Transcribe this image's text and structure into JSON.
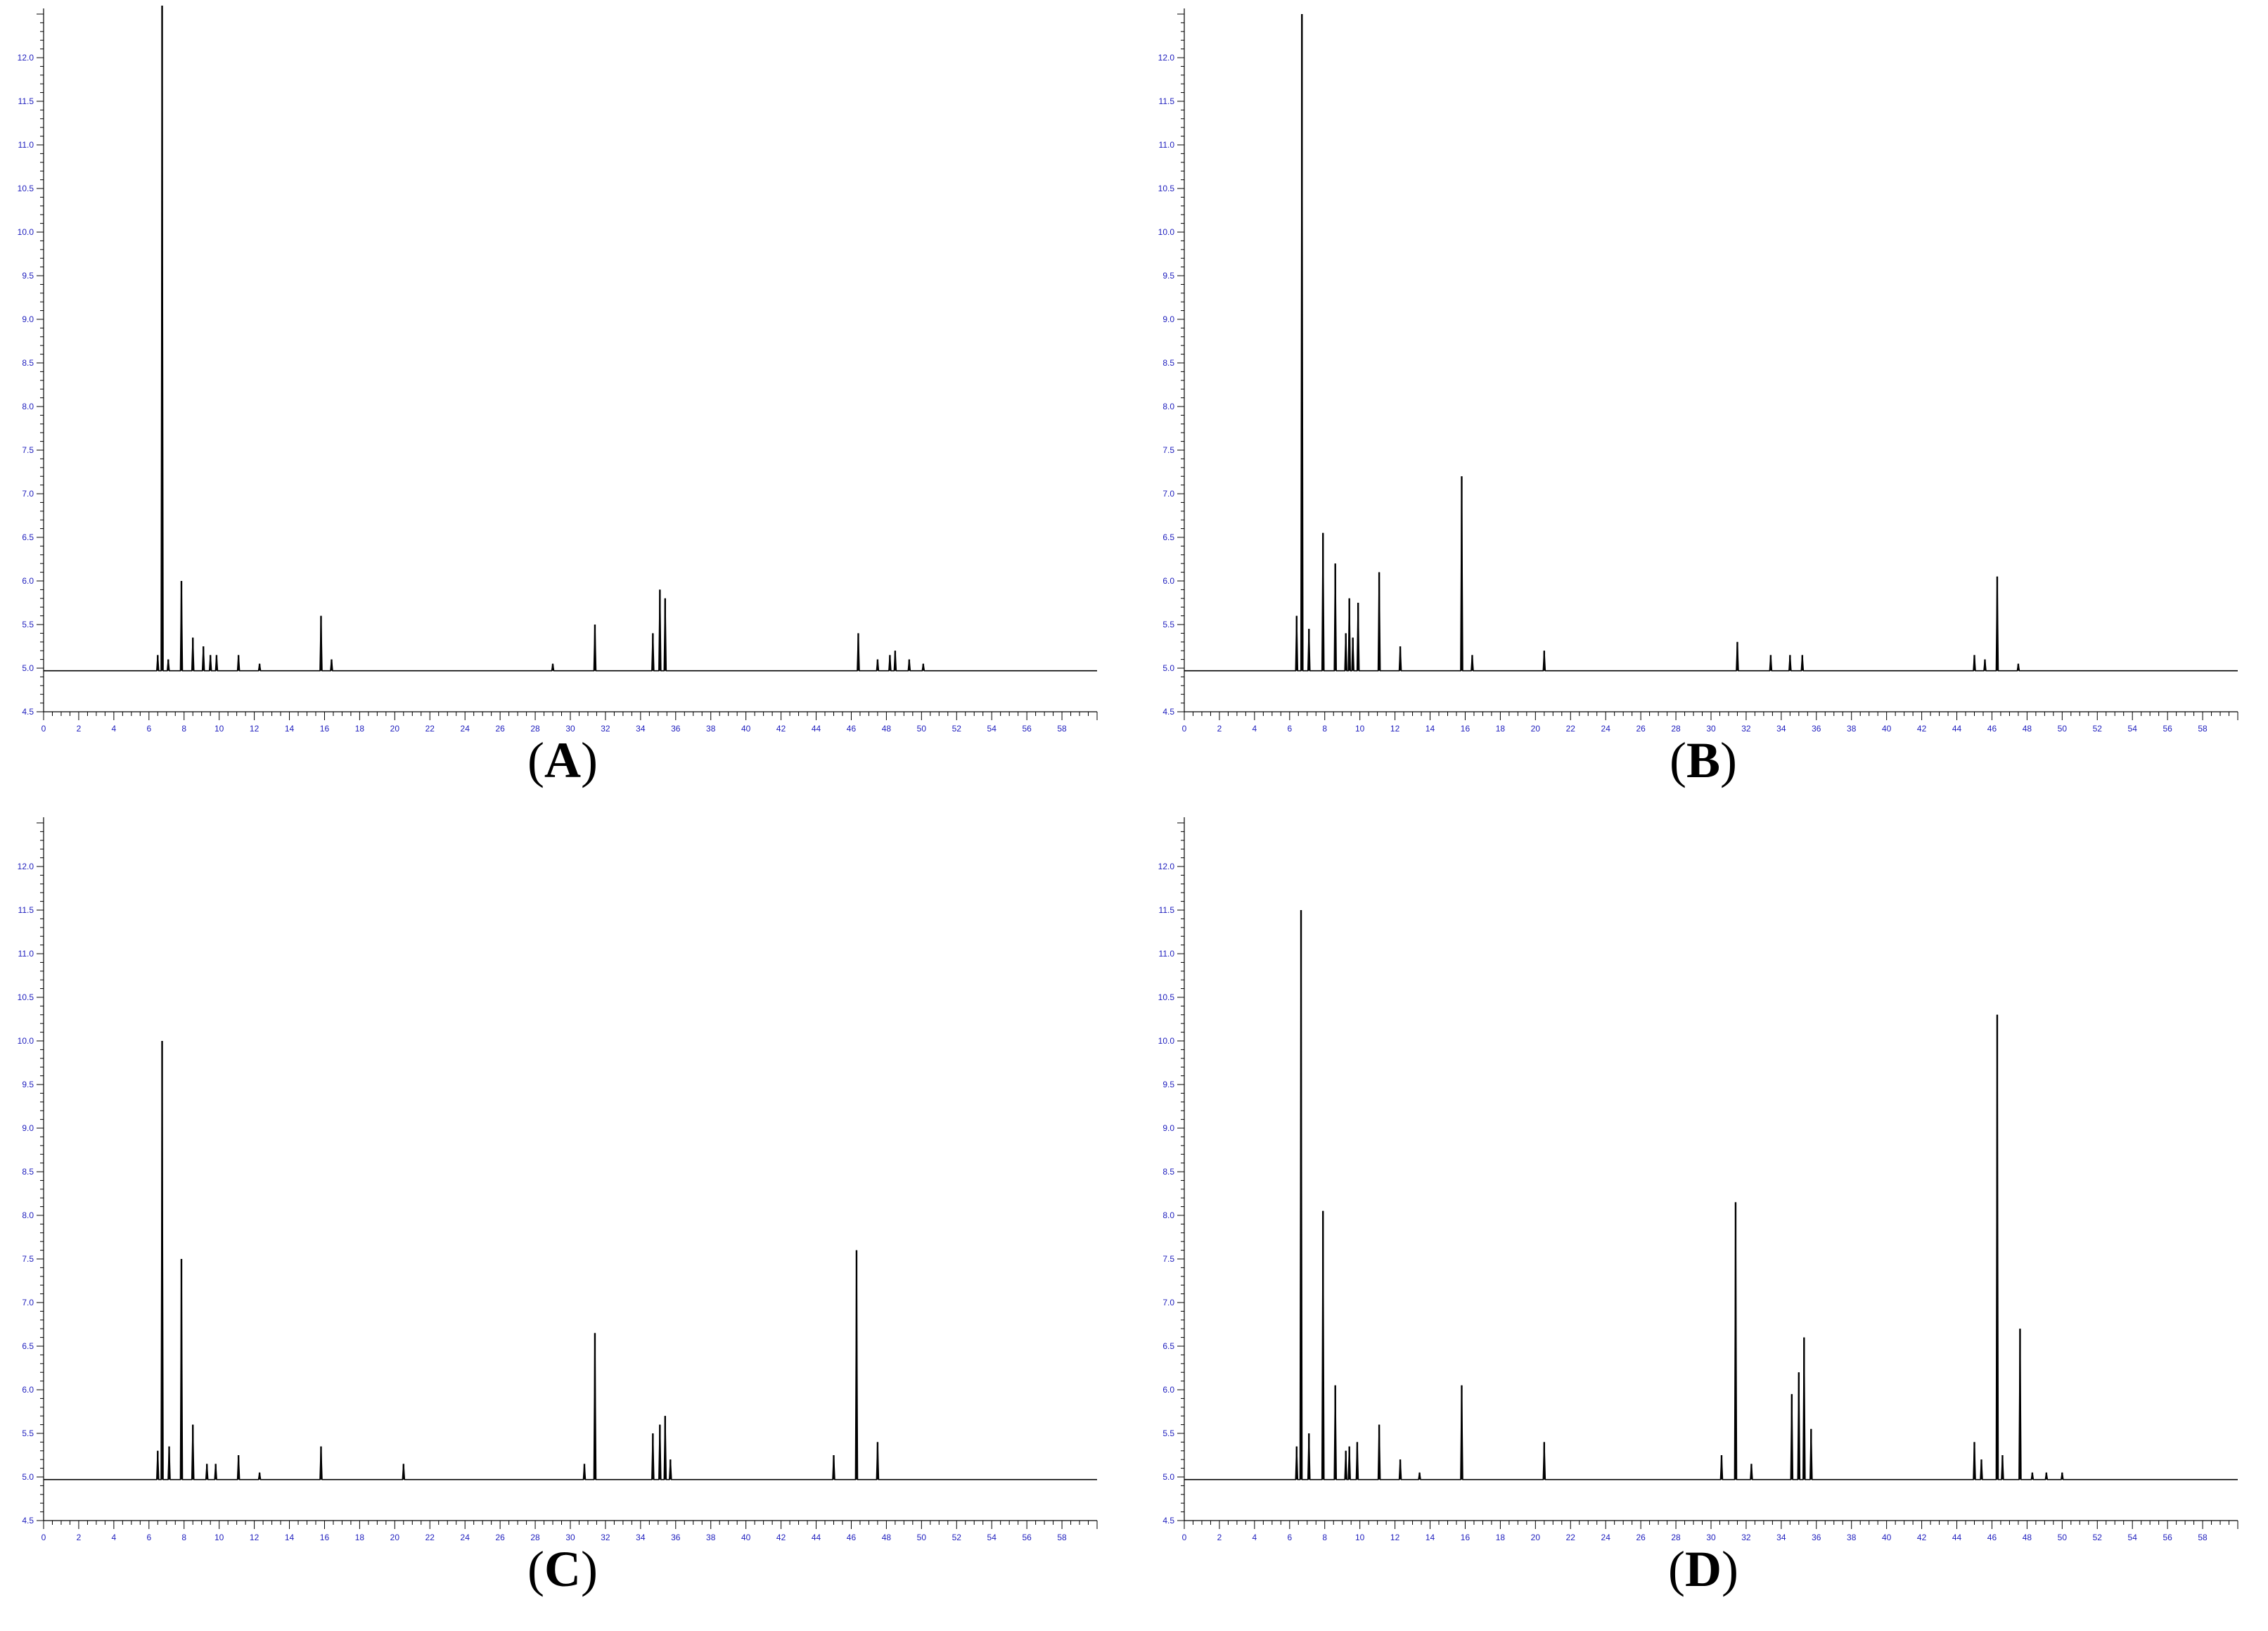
{
  "chart_data": [
    {
      "type": "line",
      "panel_label": "A",
      "xlim": [
        0,
        60
      ],
      "ylim": [
        4.5,
        12.5
      ],
      "baseline": 4.97,
      "x_ticks": [
        "0",
        "2",
        "4",
        "6",
        "8",
        "10",
        "12",
        "14",
        "16",
        "18",
        "20",
        "22",
        "24",
        "26",
        "28",
        "30",
        "32",
        "34",
        "36",
        "38",
        "40",
        "42",
        "44",
        "46",
        "48",
        "50",
        "52",
        "54",
        "56",
        "58"
      ],
      "y_ticks": [
        "4.5",
        "5.0",
        "5.5",
        "6.0",
        "6.5",
        "7.0",
        "7.5",
        "8.0",
        "8.5",
        "9.0",
        "9.5",
        "10.0",
        "10.5",
        "11.0",
        "11.5",
        "12.0"
      ],
      "peaks": [
        [
          6.5,
          5.15
        ],
        [
          6.75,
          12.9
        ],
        [
          7.1,
          5.1
        ],
        [
          7.85,
          6.0
        ],
        [
          8.5,
          5.35
        ],
        [
          9.1,
          5.25
        ],
        [
          9.5,
          5.15
        ],
        [
          9.85,
          5.15
        ],
        [
          11.1,
          5.15
        ],
        [
          12.3,
          5.05
        ],
        [
          15.8,
          5.6
        ],
        [
          16.4,
          5.1
        ],
        [
          29.0,
          5.05
        ],
        [
          31.4,
          5.5
        ],
        [
          34.7,
          5.4
        ],
        [
          35.1,
          5.9
        ],
        [
          35.4,
          5.8
        ],
        [
          46.4,
          5.4
        ],
        [
          47.5,
          5.1
        ],
        [
          48.2,
          5.15
        ],
        [
          48.5,
          5.2
        ],
        [
          49.3,
          5.1
        ],
        [
          50.1,
          5.05
        ]
      ]
    },
    {
      "type": "line",
      "panel_label": "B",
      "xlim": [
        0,
        60
      ],
      "ylim": [
        4.5,
        12.5
      ],
      "baseline": 4.97,
      "x_ticks": [
        "0",
        "2",
        "4",
        "6",
        "8",
        "10",
        "12",
        "14",
        "16",
        "18",
        "20",
        "22",
        "24",
        "26",
        "28",
        "30",
        "32",
        "34",
        "36",
        "38",
        "40",
        "42",
        "44",
        "46",
        "48",
        "50",
        "52",
        "54",
        "56",
        "58"
      ],
      "y_ticks": [
        "4.5",
        "5.0",
        "5.5",
        "6.0",
        "6.5",
        "7.0",
        "7.5",
        "8.0",
        "8.5",
        "9.0",
        "9.5",
        "10.0",
        "10.5",
        "11.0",
        "11.5",
        "12.0"
      ],
      "peaks": [
        [
          6.4,
          5.6
        ],
        [
          6.7,
          12.5
        ],
        [
          7.1,
          5.45
        ],
        [
          7.9,
          6.55
        ],
        [
          8.6,
          6.2
        ],
        [
          9.2,
          5.4
        ],
        [
          9.4,
          5.8
        ],
        [
          9.6,
          5.35
        ],
        [
          9.9,
          5.75
        ],
        [
          11.1,
          6.1
        ],
        [
          12.3,
          5.25
        ],
        [
          15.8,
          7.2
        ],
        [
          16.4,
          5.15
        ],
        [
          20.5,
          5.2
        ],
        [
          31.5,
          5.3
        ],
        [
          33.4,
          5.15
        ],
        [
          34.5,
          5.15
        ],
        [
          35.2,
          5.15
        ],
        [
          45.0,
          5.15
        ],
        [
          45.6,
          5.1
        ],
        [
          46.3,
          6.05
        ],
        [
          47.5,
          5.05
        ]
      ]
    },
    {
      "type": "line",
      "panel_label": "C",
      "xlim": [
        0,
        60
      ],
      "ylim": [
        4.5,
        12.5
      ],
      "baseline": 4.97,
      "x_ticks": [
        "0",
        "2",
        "4",
        "6",
        "8",
        "10",
        "12",
        "14",
        "16",
        "18",
        "20",
        "22",
        "24",
        "26",
        "28",
        "30",
        "32",
        "34",
        "36",
        "38",
        "40",
        "42",
        "44",
        "46",
        "48",
        "50",
        "52",
        "54",
        "56",
        "58"
      ],
      "y_ticks": [
        "4.5",
        "5.0",
        "5.5",
        "6.0",
        "6.5",
        "7.0",
        "7.5",
        "8.0",
        "8.5",
        "9.0",
        "9.5",
        "10.0",
        "10.5",
        "11.0",
        "11.5",
        "12.0"
      ],
      "peaks": [
        [
          6.5,
          5.3
        ],
        [
          6.75,
          10.0
        ],
        [
          7.15,
          5.35
        ],
        [
          7.85,
          7.5
        ],
        [
          8.5,
          5.6
        ],
        [
          9.3,
          5.15
        ],
        [
          9.8,
          5.15
        ],
        [
          11.1,
          5.25
        ],
        [
          12.3,
          5.05
        ],
        [
          15.8,
          5.35
        ],
        [
          20.5,
          5.15
        ],
        [
          30.8,
          5.15
        ],
        [
          31.4,
          6.65
        ],
        [
          34.7,
          5.5
        ],
        [
          35.1,
          5.6
        ],
        [
          35.4,
          5.7
        ],
        [
          35.7,
          5.2
        ],
        [
          45.0,
          5.25
        ],
        [
          46.3,
          7.6
        ],
        [
          47.5,
          5.4
        ]
      ]
    },
    {
      "type": "line",
      "panel_label": "D",
      "xlim": [
        0,
        60
      ],
      "ylim": [
        4.5,
        12.5
      ],
      "baseline": 4.97,
      "x_ticks": [
        "0",
        "2",
        "4",
        "6",
        "8",
        "10",
        "12",
        "14",
        "16",
        "18",
        "20",
        "22",
        "24",
        "26",
        "28",
        "30",
        "32",
        "34",
        "36",
        "38",
        "40",
        "42",
        "44",
        "46",
        "48",
        "50",
        "52",
        "54",
        "56",
        "58"
      ],
      "y_ticks": [
        "4.5",
        "5.0",
        "5.5",
        "6.0",
        "6.5",
        "7.0",
        "7.5",
        "8.0",
        "8.5",
        "9.0",
        "9.5",
        "10.0",
        "10.5",
        "11.0",
        "11.5",
        "12.0"
      ],
      "peaks": [
        [
          6.4,
          5.35
        ],
        [
          6.65,
          11.5
        ],
        [
          7.1,
          5.5
        ],
        [
          7.9,
          8.05
        ],
        [
          8.6,
          6.05
        ],
        [
          9.2,
          5.3
        ],
        [
          9.4,
          5.35
        ],
        [
          9.85,
          5.4
        ],
        [
          11.1,
          5.6
        ],
        [
          12.3,
          5.2
        ],
        [
          13.4,
          5.05
        ],
        [
          15.8,
          6.05
        ],
        [
          20.5,
          5.4
        ],
        [
          30.6,
          5.25
        ],
        [
          31.4,
          8.15
        ],
        [
          32.3,
          5.15
        ],
        [
          34.6,
          5.95
        ],
        [
          35.0,
          6.2
        ],
        [
          35.3,
          6.6
        ],
        [
          35.7,
          5.55
        ],
        [
          45.0,
          5.4
        ],
        [
          45.4,
          5.2
        ],
        [
          46.3,
          10.3
        ],
        [
          46.6,
          5.25
        ],
        [
          47.6,
          6.7
        ],
        [
          48.3,
          5.05
        ],
        [
          49.1,
          5.05
        ],
        [
          50.0,
          5.05
        ]
      ]
    }
  ]
}
